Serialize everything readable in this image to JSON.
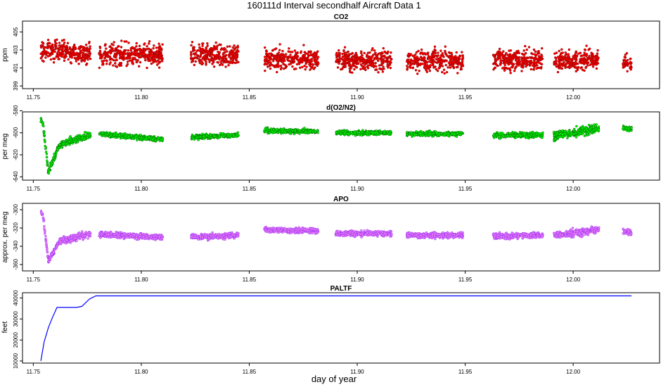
{
  "figure": {
    "title": "160111d   Interval secondhalf Aircraft Data 1",
    "xlabel": "day of year"
  },
  "chart_data": [
    {
      "type": "scatter",
      "title": "CO2",
      "ylabel": "ppm",
      "xlim": [
        11.745,
        12.04
      ],
      "ylim": [
        398.7,
        406.2
      ],
      "xticks": [
        "11.75",
        "11.80",
        "11.85",
        "11.90",
        "11.95",
        "12.00"
      ],
      "yticks": [
        "399",
        "401",
        "403",
        "405"
      ],
      "fill_color": "#ff0000",
      "edge_color": "#8b0000",
      "segments": [
        {
          "x": [
            11.7535,
            11.7765
          ],
          "center": [
            403.0,
            402.6
          ],
          "spread": 1.1
        },
        {
          "x": [
            11.7805,
            11.81
          ],
          "center": [
            402.3,
            402.6
          ],
          "spread": 1.2
        },
        {
          "x": [
            11.823,
            11.845
          ],
          "center": [
            402.5,
            402.4
          ],
          "spread": 1.1
        },
        {
          "x": [
            11.857,
            11.882
          ],
          "center": [
            402.0,
            402.0
          ],
          "spread": 1.1
        },
        {
          "x": [
            11.89,
            11.916
          ],
          "center": [
            401.9,
            401.8
          ],
          "spread": 1.1
        },
        {
          "x": [
            11.923,
            11.949
          ],
          "center": [
            401.8,
            401.8
          ],
          "spread": 1.1
        },
        {
          "x": [
            11.963,
            11.986
          ],
          "center": [
            401.9,
            401.9
          ],
          "spread": 1.1
        },
        {
          "x": [
            11.991,
            12.012
          ],
          "center": [
            401.8,
            401.9
          ],
          "spread": 1.1
        },
        {
          "x": [
            12.023,
            12.027
          ],
          "center": [
            401.5,
            401.5
          ],
          "spread": 0.9
        }
      ]
    },
    {
      "type": "scatter",
      "title": "d(O2/N2)",
      "ylabel": "per meg",
      "xlim": [
        11.745,
        12.04
      ],
      "ylim": [
        -643,
        -581
      ],
      "xticks": [
        "11.75",
        "11.80",
        "11.85",
        "11.90",
        "11.95",
        "12.00"
      ],
      "yticks": [
        "-640",
        "-620",
        "-600",
        "-580"
      ],
      "fill_color": "#00ff00",
      "edge_color": "#006400",
      "segments": [
        {
          "x": [
            11.7535,
            11.7545
          ],
          "center": [
            -588,
            -592
          ],
          "spread": 2
        },
        {
          "x": [
            11.7545,
            11.757
          ],
          "center": [
            -592,
            -636
          ],
          "spread": 3
        },
        {
          "x": [
            11.757,
            11.762
          ],
          "center": [
            -636,
            -611
          ],
          "spread": 3
        },
        {
          "x": [
            11.762,
            11.7765
          ],
          "center": [
            -611,
            -602
          ],
          "spread": 3
        },
        {
          "x": [
            11.7805,
            11.81
          ],
          "center": [
            -601,
            -606
          ],
          "spread": 2
        },
        {
          "x": [
            11.823,
            11.845
          ],
          "center": [
            -604,
            -602
          ],
          "spread": 2
        },
        {
          "x": [
            11.857,
            11.882
          ],
          "center": [
            -598,
            -599
          ],
          "spread": 2
        },
        {
          "x": [
            11.89,
            11.916
          ],
          "center": [
            -600,
            -600
          ],
          "spread": 2
        },
        {
          "x": [
            11.923,
            11.949
          ],
          "center": [
            -601,
            -601
          ],
          "spread": 2
        },
        {
          "x": [
            11.963,
            11.986
          ],
          "center": [
            -602,
            -602
          ],
          "spread": 2.5
        },
        {
          "x": [
            11.991,
            12.012
          ],
          "center": [
            -603,
            -596
          ],
          "spread": 4
        },
        {
          "x": [
            12.023,
            12.027
          ],
          "center": [
            -595,
            -597
          ],
          "spread": 2
        }
      ]
    },
    {
      "type": "scatter",
      "title": "APO",
      "ylabel": "approx. per meg",
      "xlim": [
        11.745,
        12.04
      ],
      "ylim": [
        -367,
        -293
      ],
      "xticks": [
        "11.75",
        "11.80",
        "11.85",
        "11.90",
        "11.95",
        "12.00"
      ],
      "yticks": [
        "-360",
        "-340",
        "-320",
        "-300"
      ],
      "fill_color": "#ee82ee",
      "edge_color": "#9b30ff",
      "segments": [
        {
          "x": [
            11.7535,
            11.7545
          ],
          "center": [
            -303,
            -306
          ],
          "spread": 2
        },
        {
          "x": [
            11.7545,
            11.757
          ],
          "center": [
            -306,
            -356
          ],
          "spread": 3
        },
        {
          "x": [
            11.757,
            11.762
          ],
          "center": [
            -356,
            -335
          ],
          "spread": 3
        },
        {
          "x": [
            11.762,
            11.7765
          ],
          "center": [
            -335,
            -326
          ],
          "spread": 4
        },
        {
          "x": [
            11.7805,
            11.81
          ],
          "center": [
            -327,
            -330
          ],
          "spread": 3
        },
        {
          "x": [
            11.823,
            11.845
          ],
          "center": [
            -330,
            -328
          ],
          "spread": 3
        },
        {
          "x": [
            11.857,
            11.882
          ],
          "center": [
            -322,
            -323
          ],
          "spread": 3
        },
        {
          "x": [
            11.89,
            11.916
          ],
          "center": [
            -326,
            -326
          ],
          "spread": 3
        },
        {
          "x": [
            11.923,
            11.949
          ],
          "center": [
            -328,
            -328
          ],
          "spread": 3
        },
        {
          "x": [
            11.963,
            11.986
          ],
          "center": [
            -329,
            -328
          ],
          "spread": 3
        },
        {
          "x": [
            11.991,
            12.012
          ],
          "center": [
            -328,
            -322
          ],
          "spread": 4
        },
        {
          "x": [
            12.023,
            12.027
          ],
          "center": [
            -323,
            -325
          ],
          "spread": 3
        }
      ]
    },
    {
      "type": "line",
      "title": "PALTF",
      "ylabel": "feet",
      "xlim": [
        11.745,
        12.04
      ],
      "ylim": [
        9000,
        42500
      ],
      "xticks": [
        "11.75",
        "11.80",
        "11.85",
        "11.90",
        "11.95",
        "12.00"
      ],
      "yticks": [
        "10000",
        "20000",
        "30000",
        "40000"
      ],
      "line_color": "#0000ff",
      "x": [
        11.7535,
        11.755,
        11.757,
        11.759,
        11.761,
        11.77,
        11.7725,
        11.776,
        11.779,
        12.027
      ],
      "y": [
        10000,
        19000,
        26000,
        31000,
        35500,
        35500,
        36000,
        39500,
        41000,
        41000
      ]
    }
  ]
}
